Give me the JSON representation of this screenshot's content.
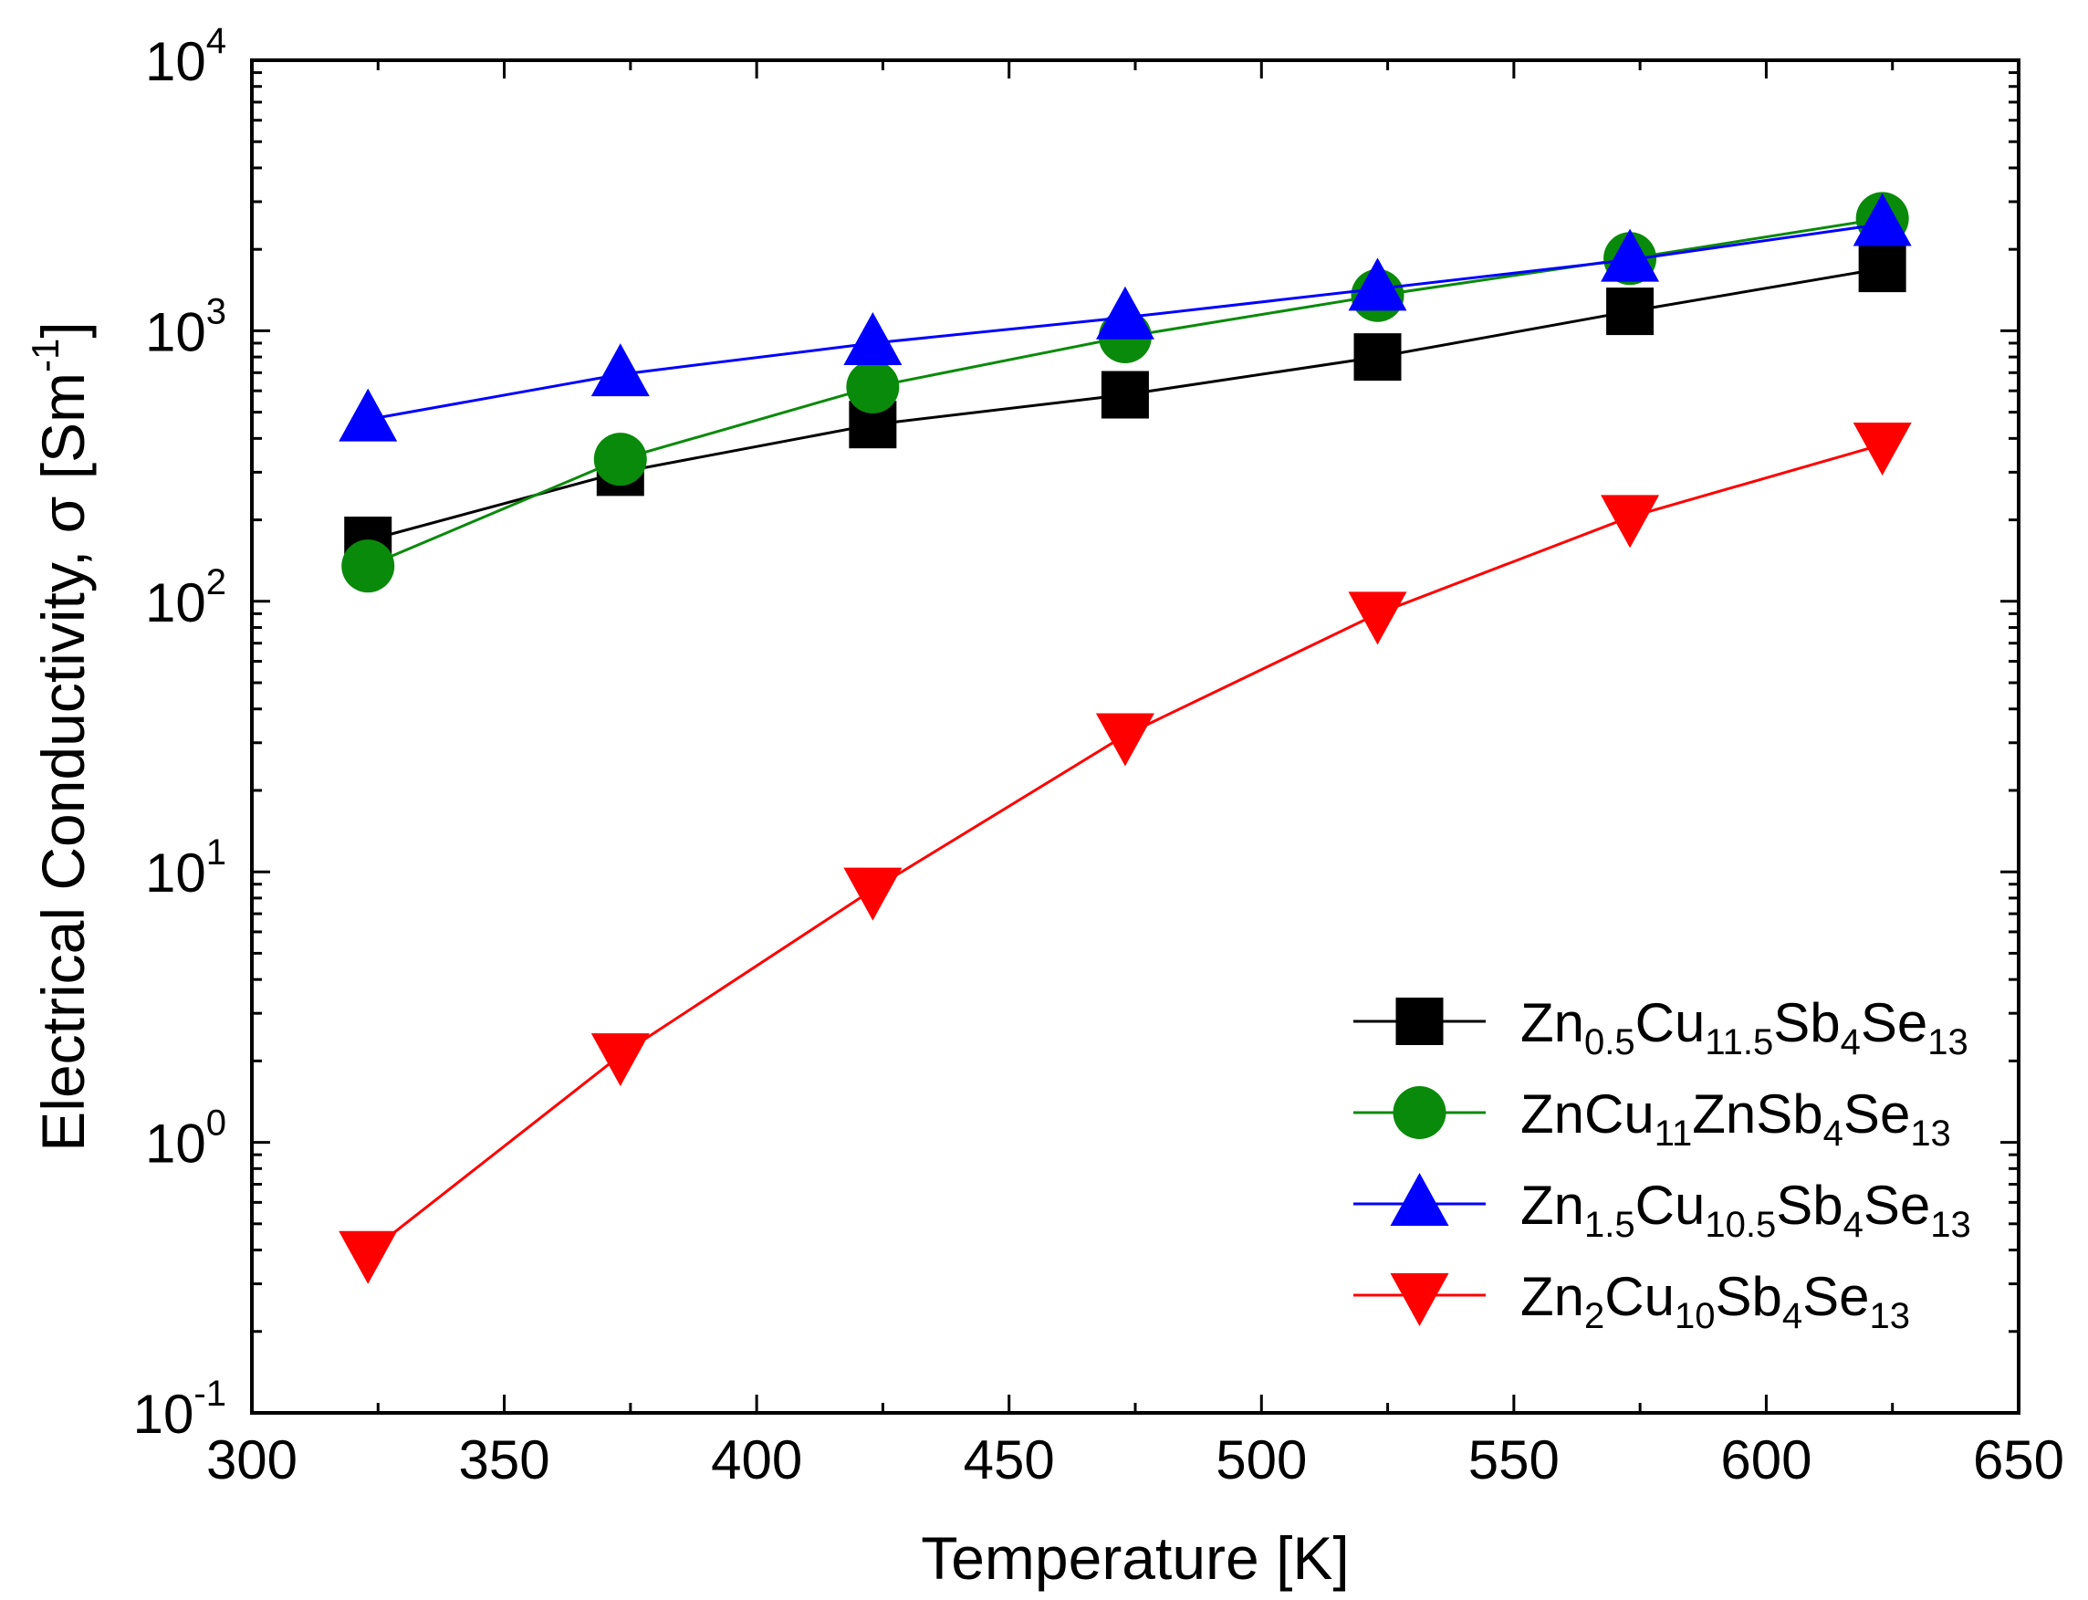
{
  "chart_data": {
    "type": "line",
    "yscale": "log",
    "xlabel": "Temperature [K]",
    "ylabel": {
      "main": "Electrical Conductivity, σ [Sm",
      "exponent": "-1",
      "close": "]"
    },
    "xlim": [
      300,
      650
    ],
    "ylim": [
      0.1,
      10000
    ],
    "xticks": [
      300,
      350,
      400,
      450,
      500,
      550,
      600,
      650
    ],
    "xtick_labels": [
      "300",
      "350",
      "400",
      "450",
      "500",
      "550",
      "600",
      "650"
    ],
    "yticks": [
      {
        "value": 0.1,
        "base": "10",
        "exp": "-1"
      },
      {
        "value": 1,
        "base": "10",
        "exp": "0"
      },
      {
        "value": 10,
        "base": "10",
        "exp": "1"
      },
      {
        "value": 100,
        "base": "10",
        "exp": "2"
      },
      {
        "value": 1000,
        "base": "10",
        "exp": "3"
      },
      {
        "value": 10000,
        "base": "10",
        "exp": "4"
      }
    ],
    "x": [
      323,
      373,
      423,
      473,
      523,
      573,
      623
    ],
    "series": [
      {
        "name": "Zn0.5Cu11.5Sb4Se13",
        "label_parts": [
          [
            "Zn",
            ""
          ],
          [
            "0.5",
            "sub"
          ],
          [
            "Cu",
            ""
          ],
          [
            "11.5",
            "sub"
          ],
          [
            "Sb",
            ""
          ],
          [
            "4",
            "sub"
          ],
          [
            "Se",
            ""
          ],
          [
            "13",
            "sub"
          ]
        ],
        "color": "#000000",
        "marker": "square",
        "values": [
          168,
          300,
          450,
          580,
          800,
          1180,
          1700
        ]
      },
      {
        "name": "ZnCu11ZnSb4Se13",
        "label_parts": [
          [
            "ZnCu",
            ""
          ],
          [
            "11",
            "sub"
          ],
          [
            "ZnSb",
            ""
          ],
          [
            "4",
            "sub"
          ],
          [
            "Se",
            ""
          ],
          [
            "13",
            "sub"
          ]
        ],
        "color": "#0a8a0a",
        "marker": "circle",
        "values": [
          135,
          335,
          620,
          950,
          1350,
          1850,
          2600
        ]
      },
      {
        "name": "Zn1.5Cu10.5Sb4Se13",
        "label_parts": [
          [
            "Zn",
            ""
          ],
          [
            "1.5",
            "sub"
          ],
          [
            "Cu",
            ""
          ],
          [
            "10.5",
            "sub"
          ],
          [
            "Sb",
            ""
          ],
          [
            "4",
            "sub"
          ],
          [
            "Se",
            ""
          ],
          [
            "13",
            "sub"
          ]
        ],
        "color": "#0000ff",
        "marker": "triangle-up",
        "values": [
          470,
          690,
          900,
          1120,
          1430,
          1830,
          2480
        ]
      },
      {
        "name": "Zn2Cu10Sb4Se13",
        "label_parts": [
          [
            "Zn",
            ""
          ],
          [
            "2",
            "sub"
          ],
          [
            "Cu",
            ""
          ],
          [
            "10",
            "sub"
          ],
          [
            "Sb",
            ""
          ],
          [
            "4",
            "sub"
          ],
          [
            "Se",
            ""
          ],
          [
            "13",
            "sub"
          ]
        ],
        "color": "#ff0000",
        "marker": "triangle-down",
        "values": [
          0.39,
          2.1,
          8.6,
          32,
          90,
          205,
          380
        ]
      }
    ],
    "legend_position": "bottom-right",
    "grid": false
  }
}
